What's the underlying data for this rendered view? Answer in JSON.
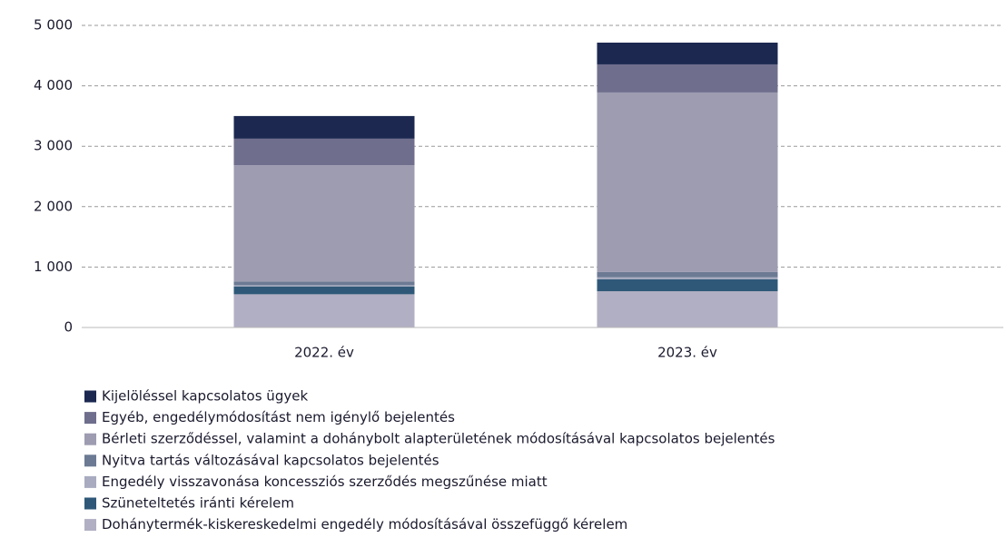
{
  "chart_data": {
    "type": "stacked_bar",
    "categories": [
      "2022. év",
      "2023. év"
    ],
    "series": [
      {
        "name": "Kijelöléssel kapcsolatos ügyek",
        "color": "#1c2850",
        "values": [
          375,
          360
        ]
      },
      {
        "name": "Egyéb, engedélymódosítást nem igénylő bejelentés",
        "color": "#6f6e8c",
        "values": [
          440,
          465
        ]
      },
      {
        "name": "Bérleti szerződéssel, valamint a dohánybolt alapterületének módosításával kapcsolatos bejelentés",
        "color": "#9d9cb1",
        "values": [
          1925,
          2970
        ]
      },
      {
        "name": "Nyitva tartás változásával kapcsolatos bejelentés",
        "color": "#6c7a93",
        "values": [
          60,
          90
        ]
      },
      {
        "name": "Engedély visszavonása koncessziós szerződés megszűnése miatt",
        "color": "#a9acc0",
        "values": [
          20,
          30
        ]
      },
      {
        "name": "Szüneteltetés iránti kérelem",
        "color": "#2f5878",
        "values": [
          130,
          200
        ]
      },
      {
        "name": "Dohánytermék-kiskereskedelmi engedély módosításával összefüggő kérelem",
        "color": "#b1afc3",
        "values": [
          550,
          600
        ]
      }
    ],
    "ylim": [
      0,
      5000
    ],
    "yticks": [
      0,
      {
        "value": 1000,
        "label": "1 000"
      },
      {
        "value": 2000,
        "label": "2 000"
      },
      {
        "value": 3000,
        "label": "3 000"
      },
      {
        "value": 4000,
        "label": "4 000"
      },
      {
        "value": 5000,
        "label": "5 000"
      }
    ],
    "grid": true
  }
}
